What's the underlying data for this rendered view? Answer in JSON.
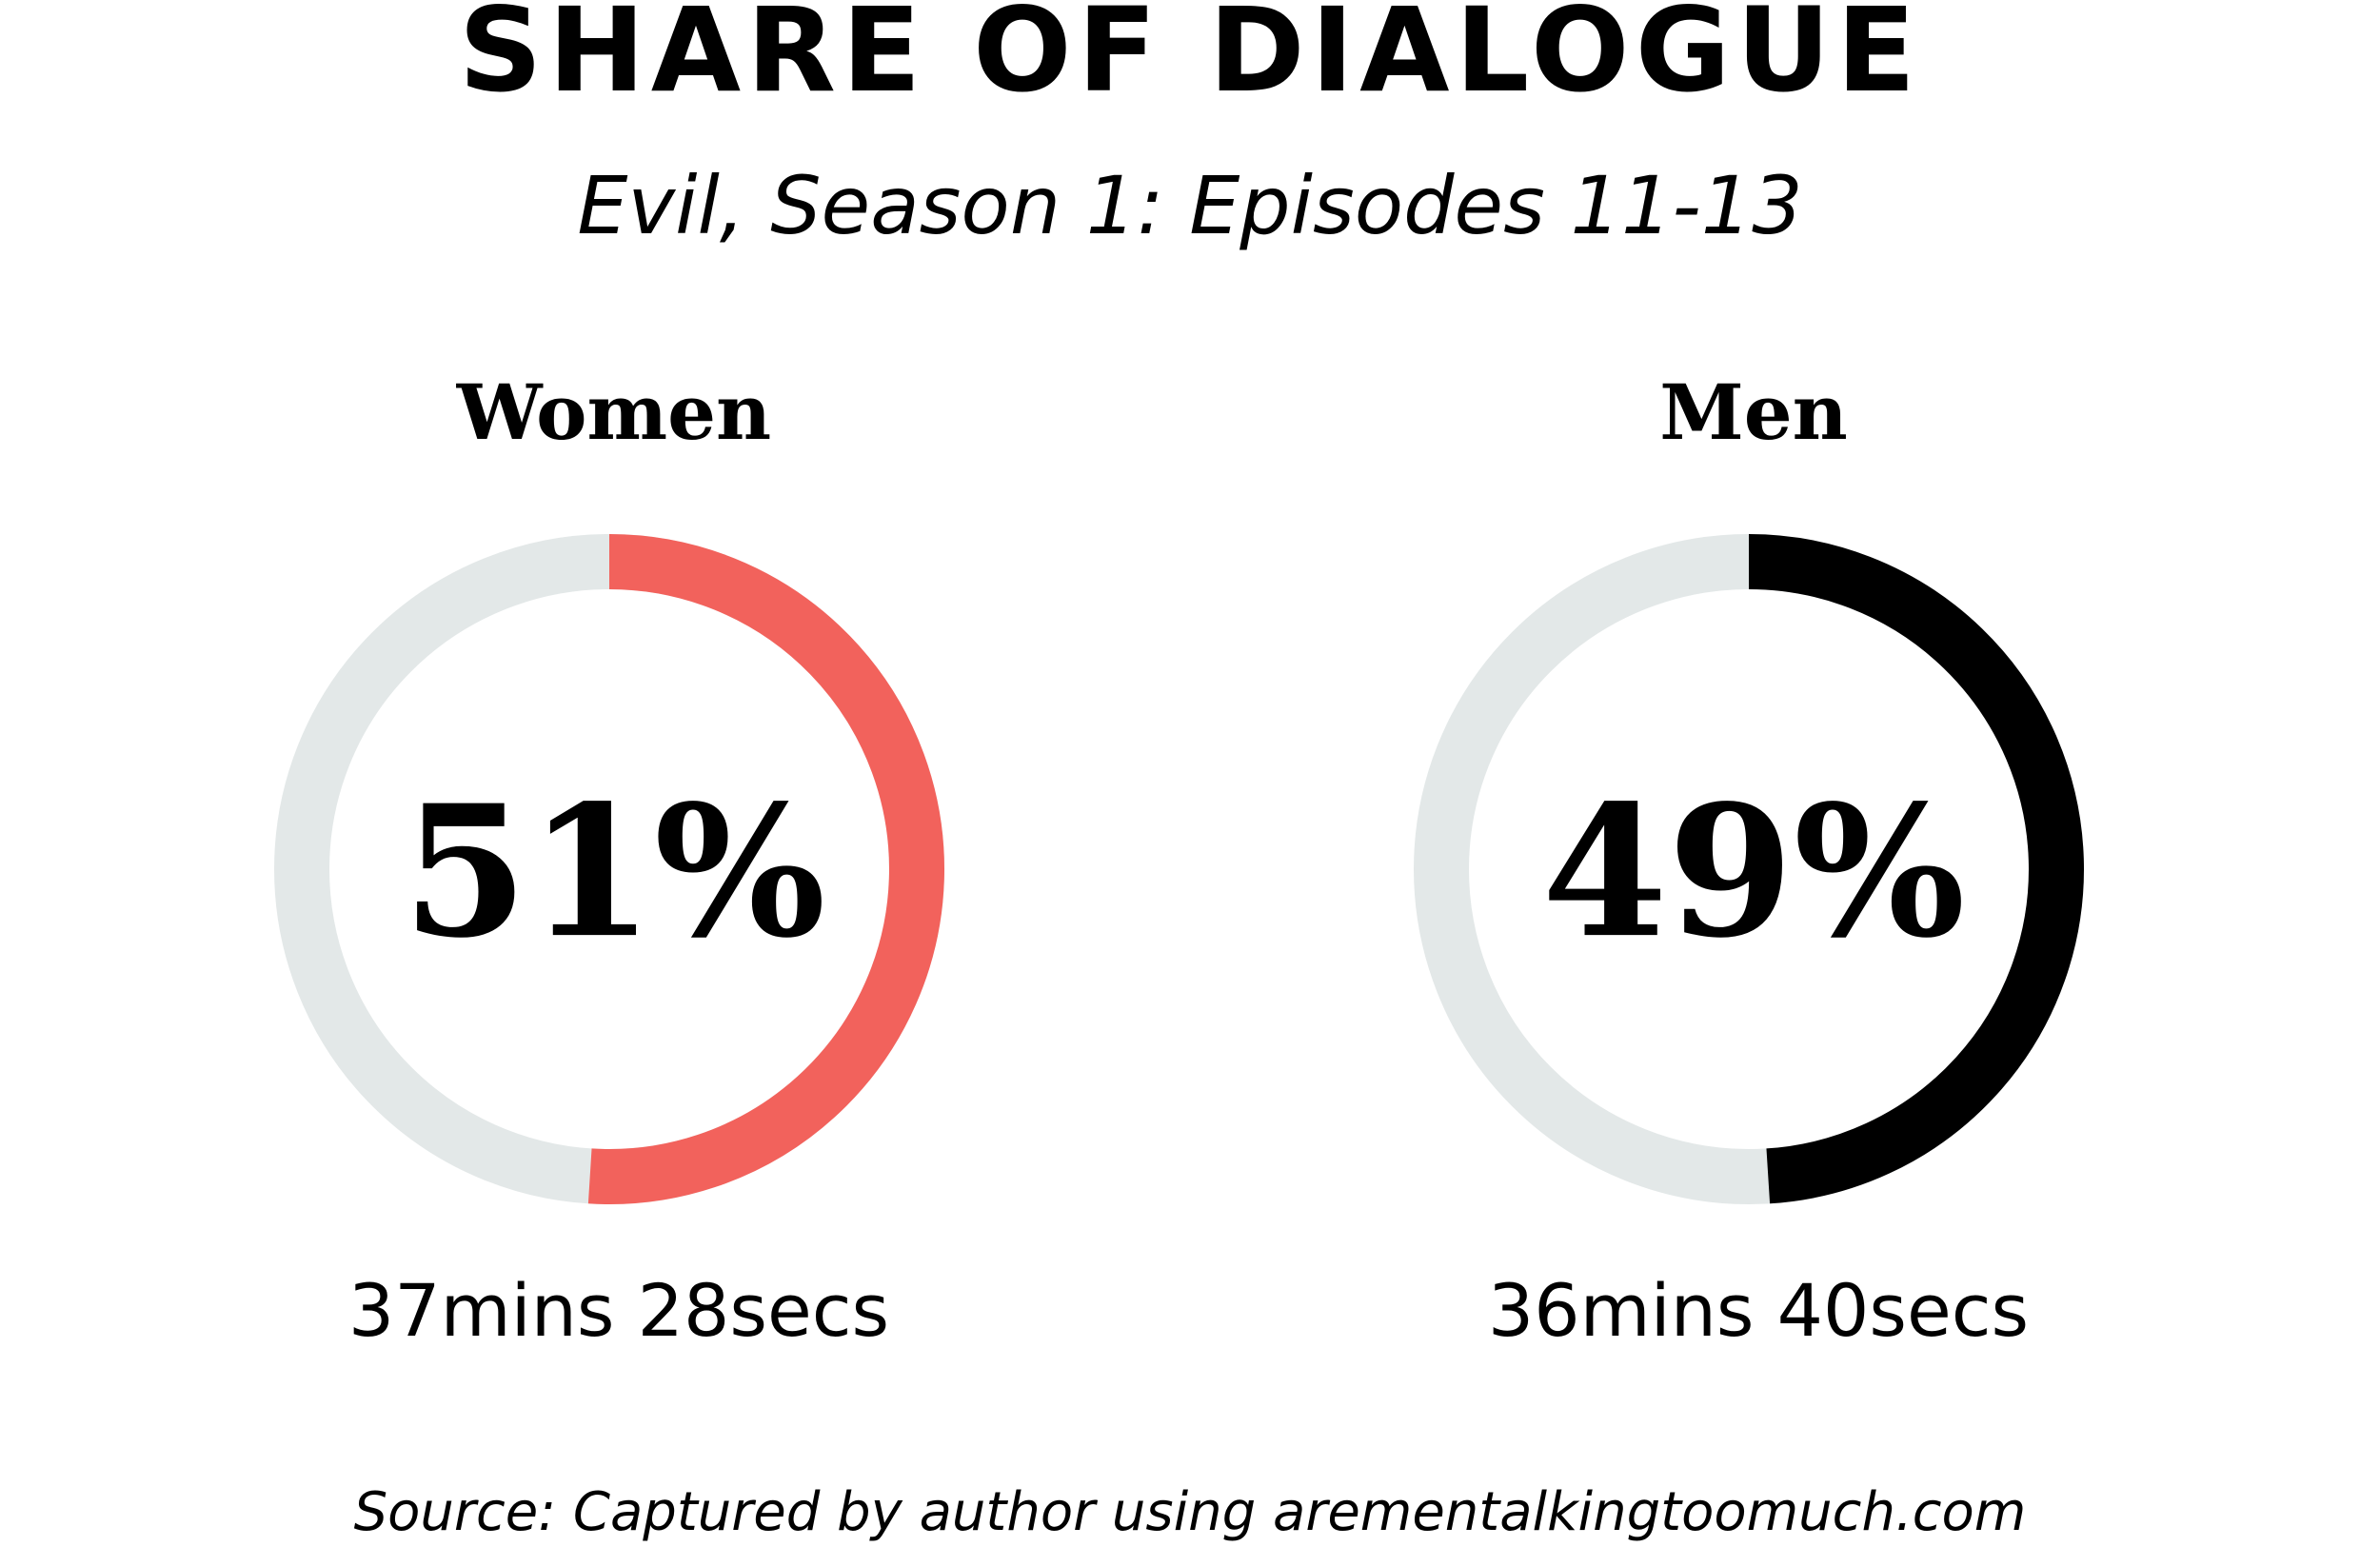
{
  "title": "SHARE OF DIALOGUE",
  "subtitle": "Evil, Season 1: Episodes 11-13",
  "source": "Source: Captured by author using arementalkingtoomuch.com",
  "chart_data": [
    {
      "type": "donut",
      "title": "Women",
      "values": [
        51
      ],
      "value_labels": [
        "51%"
      ],
      "annotation": "37mins 28secs",
      "color": "#f2625c",
      "track_color": "#e3e8e8",
      "ylim": [
        0,
        100
      ]
    },
    {
      "type": "donut",
      "title": "Men",
      "values": [
        49
      ],
      "value_labels": [
        "49%"
      ],
      "annotation": "36mins 40secs",
      "color": "#000000",
      "track_color": "#e3e8e8",
      "ylim": [
        0,
        100
      ]
    }
  ]
}
